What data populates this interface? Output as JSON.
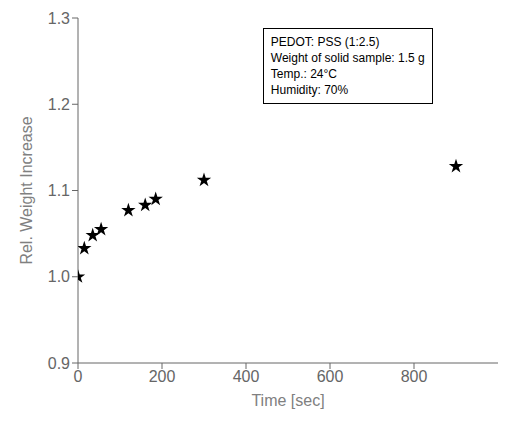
{
  "chart_data": {
    "type": "scatter",
    "x": [
      0,
      15,
      35,
      55,
      120,
      160,
      185,
      300,
      900
    ],
    "values": [
      1.0,
      1.033,
      1.048,
      1.055,
      1.077,
      1.083,
      1.09,
      1.112,
      1.128
    ],
    "xlabel": "Time [sec]",
    "ylabel": "Rel. Weight Increase",
    "xlim": [
      0,
      1000
    ],
    "ylim": [
      0.9,
      1.3
    ],
    "xticks": [
      0,
      200,
      400,
      600,
      800
    ],
    "yticks": [
      0.9,
      {
        "value": 1,
        "label": "1.0"
      },
      1.1,
      1.2,
      1.3
    ],
    "annotations": [
      "PEDOT: PSS (1:2.5)",
      "Weight of solid sample: 1.5 g",
      "Temp.: 24°C",
      "Humidity: 70%"
    ],
    "marker": "star",
    "color": "black",
    "grid": false
  }
}
